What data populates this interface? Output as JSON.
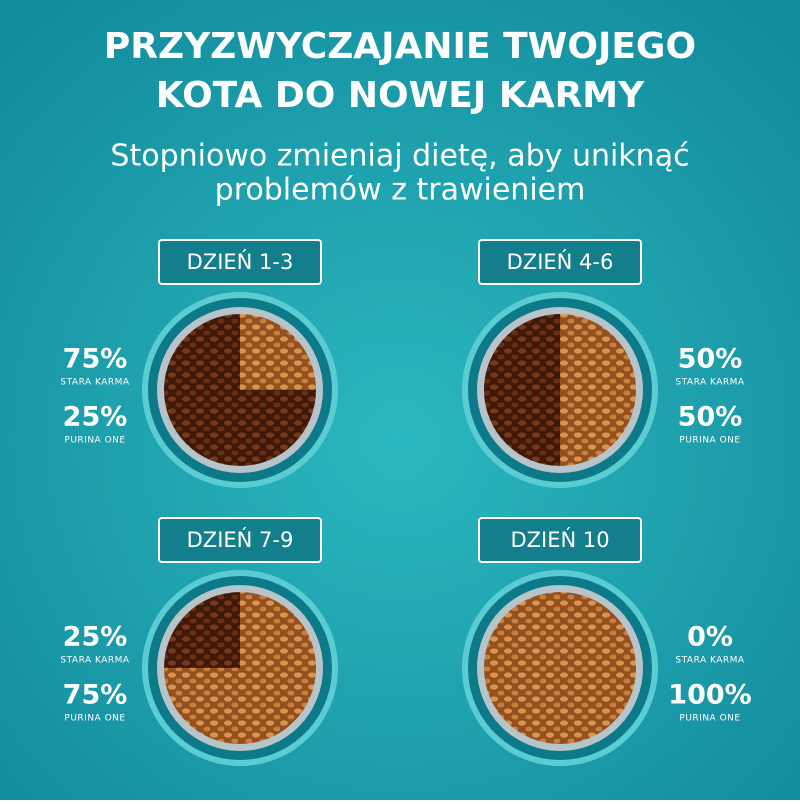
{
  "header": {
    "title_lines": [
      "PRZYZWYCZAJANIE TWOJEGO",
      "KOTA DO NOWEJ KARMY"
    ],
    "subtitle_lines": [
      "Stopniowo zmieniaj dietę, aby uniknąć",
      "problemów z trawieniem"
    ]
  },
  "stages": [
    {
      "day": "DZIEŃ 1-3",
      "old": {
        "value": 75,
        "label": "75%"
      },
      "old_name": "STARA KARMA",
      "new": {
        "value": 25,
        "label": "25%"
      },
      "new_name": "PURINA ONE"
    },
    {
      "day": "DZIEŃ 4-6",
      "old": {
        "value": 50,
        "label": "50%"
      },
      "old_name": "STARA KARMA",
      "new": {
        "value": 50,
        "label": "50%"
      },
      "new_name": "PURINA ONE"
    },
    {
      "day": "DZIEŃ 7-9",
      "old": {
        "value": 25,
        "label": "25%"
      },
      "old_name": "STARA KARMA",
      "new": {
        "value": 75,
        "label": "75%"
      },
      "new_name": "PURINA ONE"
    },
    {
      "day": "DZIEŃ 10",
      "old": {
        "value": 0,
        "label": "0%"
      },
      "old_name": "STARA KARMA",
      "new": {
        "value": 100,
        "label": "100%"
      },
      "new_name": "PURINA ONE"
    }
  ]
}
